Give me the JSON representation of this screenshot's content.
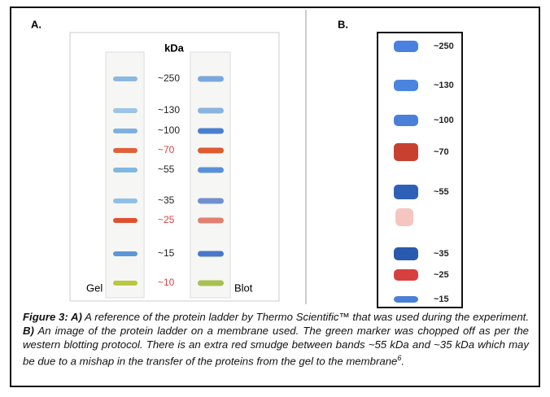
{
  "panel_a": {
    "label": "A.",
    "unit": "kDa",
    "markers": [
      "~250",
      "~130",
      "~100",
      "~70",
      "~55",
      "~35",
      "~25",
      "~15",
      "~10"
    ],
    "lanes": [
      "Gel",
      "Blot"
    ]
  },
  "panel_b": {
    "label": "B.",
    "markers": [
      "~250",
      "~130",
      "~100",
      "~70",
      "~55",
      "~35",
      "~25",
      "~15"
    ]
  },
  "caption": {
    "label_a": "Figure 3: A)",
    "text_a": " A reference of the protein ladder by Thermo Scientific™ that was used during the experiment. ",
    "label_b": "B)",
    "text_b": " An image of the protein ladder on a membrane used. The green marker was chopped off as per the western blotting protocol. There is an extra red smudge between bands ~55 kDa and ~35 kDa which may be due to a mishap in the transfer of the proteins from the gel to the membrane",
    "ref": "6",
    "end": "."
  }
}
